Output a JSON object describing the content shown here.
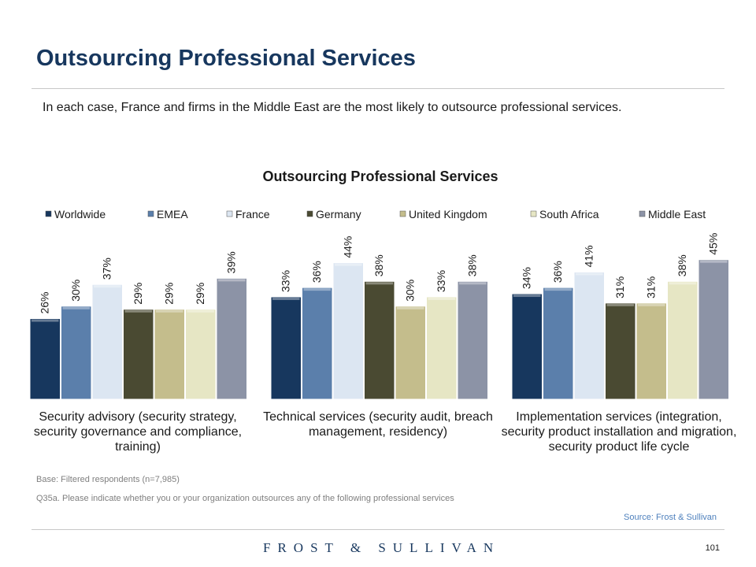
{
  "page": {
    "title": "Outsourcing Professional Services",
    "subtitle": "In each case, France and firms in the Middle East are the most likely to outsource professional services.",
    "base_note": "Base: Filtered respondents (n=7,985)",
    "question_note": "Q35a.  Please indicate whether  you or your organization outsources any of the following professional services",
    "source": "Source: Frost & Sullivan",
    "logo_text": "FROST & SULLIVAN",
    "page_number": "101"
  },
  "chart_data": {
    "type": "bar",
    "title": "Outsourcing Professional Services",
    "legend_position": "top",
    "value_format": "percent",
    "categories": [
      "Security advisory (security strategy, security governance and compliance, training)",
      "Technical services (security audit, breach management, residency)",
      "Implementation services (integration, security product installation and migration, security product life cycle"
    ],
    "series": [
      {
        "name": "Worldwide",
        "color": "#17375e",
        "values": [
          26,
          33,
          34
        ]
      },
      {
        "name": "EMEA",
        "color": "#5b7fab",
        "values": [
          30,
          36,
          36
        ]
      },
      {
        "name": "France",
        "color": "#dce6f2",
        "values": [
          37,
          44,
          41
        ]
      },
      {
        "name": "Germany",
        "color": "#4a4a32",
        "values": [
          29,
          38,
          31
        ]
      },
      {
        "name": "United Kingdom",
        "color": "#c4bd8c",
        "values": [
          29,
          30,
          31
        ]
      },
      {
        "name": "South Africa",
        "color": "#e6e6c4",
        "values": [
          29,
          33,
          38
        ]
      },
      {
        "name": "Middle East",
        "color": "#8c93a6",
        "values": [
          39,
          38,
          45
        ]
      }
    ]
  }
}
